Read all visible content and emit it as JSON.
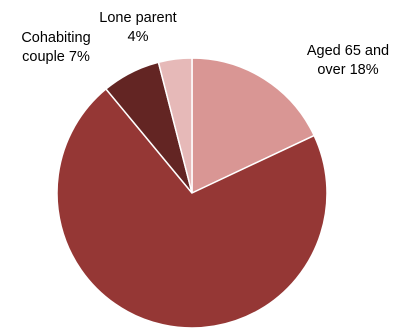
{
  "chart_data": {
    "type": "pie",
    "title": "",
    "start_angle_deg": 0,
    "direction": "clockwise",
    "legend": "none",
    "slices": [
      {
        "label_lines": [
          "Aged 65 and",
          "over 18%"
        ],
        "value": 18,
        "color": "#d99694"
      },
      {
        "label_lines": [],
        "value": 71,
        "color": "#953735"
      },
      {
        "label_lines": [
          "Cohabiting",
          "couple 7%"
        ],
        "value": 7,
        "color": "#632523"
      },
      {
        "label_lines": [
          "Lone parent",
          "4%"
        ],
        "value": 4,
        "color": "#e6b9b8"
      }
    ]
  }
}
